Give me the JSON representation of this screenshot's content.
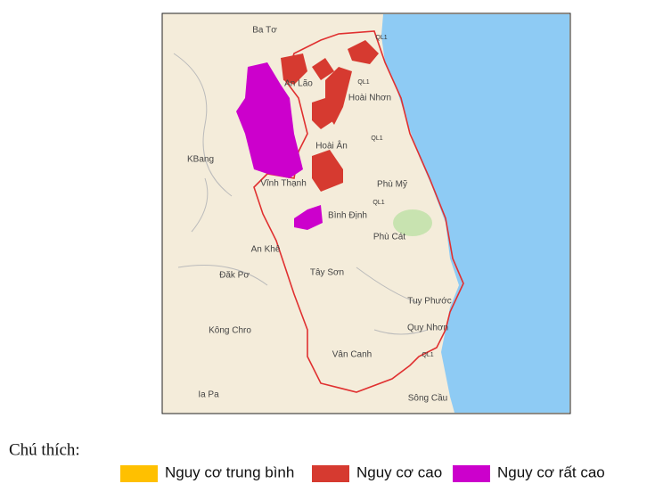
{
  "map": {
    "places": [
      "Ba Tơ",
      "An Lão",
      "Hoài Nhơn",
      "Hoài Ân",
      "KBang",
      "Vĩnh Thạnh",
      "Phù Mỹ",
      "Bình Định",
      "Phù Cát",
      "An Khê",
      "Đăk Pơ",
      "Tây Sơn",
      "Tuy Phước",
      "Quy Nhơn",
      "Kông Chro",
      "Vân Canh",
      "Ia Pa",
      "Sông Cầu"
    ],
    "roads": [
      "QL1",
      "QL1",
      "QL1",
      "QL1",
      "QL1"
    ]
  },
  "legend": {
    "title": "Chú thích:",
    "items": [
      {
        "label": "Nguy cơ trung bình",
        "color": "#ffc000"
      },
      {
        "label": "Nguy cơ cao",
        "color": "#d63a30"
      },
      {
        "label": "Nguy cơ rất cao",
        "color": "#cc00cc"
      }
    ]
  }
}
